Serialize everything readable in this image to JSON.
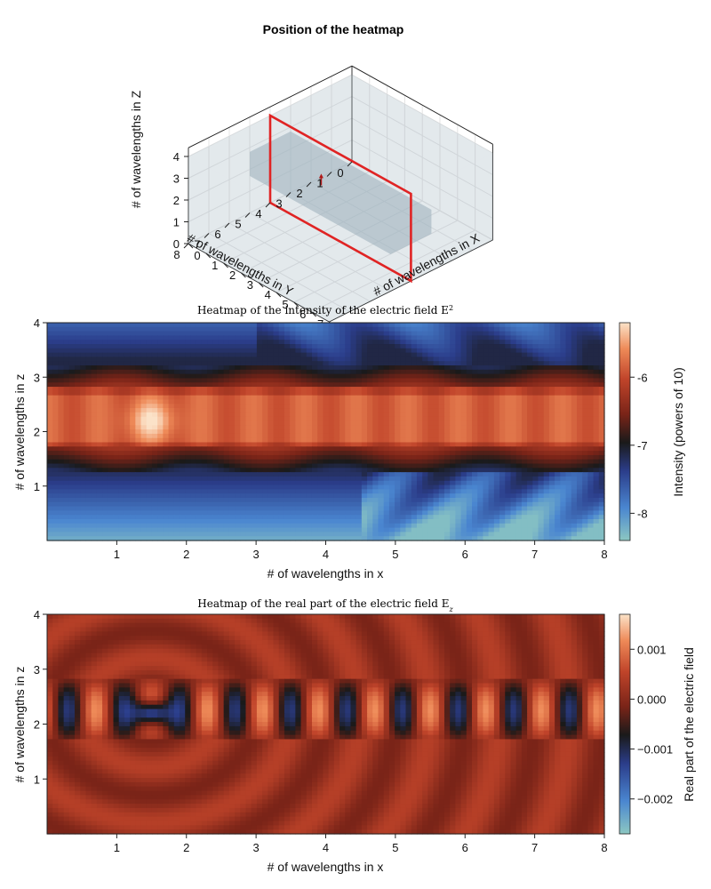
{
  "chart_data": [
    {
      "type": "3d-box",
      "title": "Position of the heatmap",
      "xlabel": "# of wavelengths in X",
      "ylabel": "# of wavelengths in Y",
      "zlabel": "# of wavelengths in Z",
      "xticks": [
        "0",
        "1",
        "2",
        "3",
        "4",
        "5",
        "6",
        "7",
        "8"
      ],
      "yticks": [
        "8",
        "7",
        "6",
        "5",
        "4",
        "3",
        "2",
        "1",
        "0"
      ],
      "zticks": [
        "0",
        "1",
        "2",
        "3",
        "4"
      ],
      "xlim": [
        0,
        8
      ],
      "ylim": [
        0,
        8
      ],
      "zlim": [
        0,
        4.4
      ],
      "domain_box": {
        "x": [
          0,
          8
        ],
        "y": [
          0,
          8
        ],
        "z": [
          0,
          4
        ]
      },
      "waveguide_box": {
        "x": [
          0,
          8
        ],
        "y": [
          3,
          5
        ],
        "z": [
          1.7,
          2.8
        ]
      },
      "heatmap_plane": {
        "y": 4,
        "x": [
          0,
          8
        ],
        "z": [
          0,
          4
        ]
      },
      "plane_color": "#e02424",
      "box_color": "#9fb3be"
    },
    {
      "type": "heatmap",
      "title": "Heatmap of the intensity of the electric field E",
      "title_superscript": "2",
      "xlabel": "# of wavelengths in x",
      "ylabel": "# of wavelengths in z",
      "xticks": [
        "1",
        "2",
        "3",
        "4",
        "5",
        "6",
        "7",
        "8"
      ],
      "yticks": [
        "1",
        "2",
        "3",
        "4"
      ],
      "xlim": [
        0,
        8
      ],
      "ylim": [
        0,
        4
      ],
      "colorbar_label": "Intensity (powers of 10)",
      "colorbar_ticks": [
        "-6",
        "-7",
        "-8"
      ],
      "colorbar_values": [
        -6,
        -7,
        -8
      ],
      "colorbar_range": [
        -8.4,
        -5.2
      ],
      "colormap": [
        "#8cc7c2",
        "#4a86d0",
        "#2b3d8a",
        "#1a1a1a",
        "#7a2418",
        "#c0442a",
        "#ee8a58",
        "#fbe2c8"
      ],
      "grid": "101x51"
    },
    {
      "type": "heatmap",
      "title": "Heatmap of the real part of the electric field E",
      "title_subscript": "z",
      "xlabel": "# of wavelengths in x",
      "ylabel": "# of wavelengths in z",
      "xticks": [
        "1",
        "2",
        "3",
        "4",
        "5",
        "6",
        "7",
        "8"
      ],
      "yticks": [
        "1",
        "2",
        "3",
        "4"
      ],
      "xlim": [
        0,
        8
      ],
      "ylim": [
        0,
        4
      ],
      "colorbar_label": "Real part of the electric field",
      "colorbar_ticks": [
        "0.001",
        "0.000",
        "−0.001",
        "−0.002"
      ],
      "colorbar_values": [
        0.001,
        0.0,
        -0.001,
        -0.002
      ],
      "colorbar_range": [
        -0.0027,
        0.0017
      ],
      "colormap": [
        "#8cc7c2",
        "#4a86d0",
        "#2b3d8a",
        "#1a1a1a",
        "#7a2418",
        "#c0442a",
        "#ee8a58",
        "#fbe2c8"
      ],
      "grid": "101x51"
    }
  ]
}
